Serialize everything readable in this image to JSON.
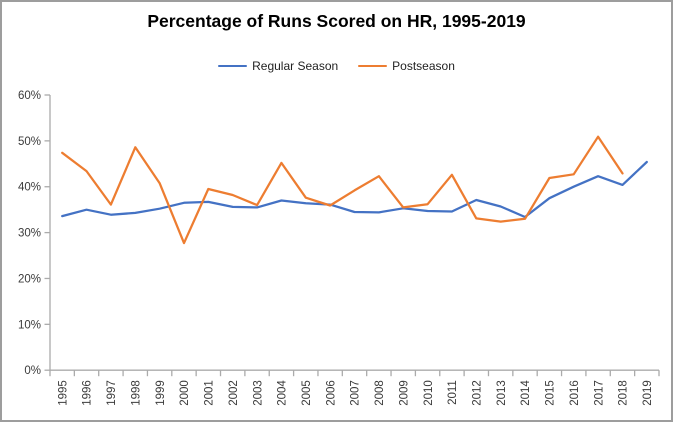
{
  "title": "Percentage of Runs Scored on HR, 1995-2019",
  "legend": {
    "items": [
      {
        "label": "Regular Season",
        "color": "#4472C4"
      },
      {
        "label": "Postseason",
        "color": "#ED7D31"
      }
    ]
  },
  "colors": {
    "regular_season": "#4472C4",
    "postseason": "#ED7D31",
    "axis_line": "#ababab",
    "tick_label": "#3b3b3b",
    "frame_border": "#9d9d9d"
  },
  "chart_data": {
    "type": "line",
    "title": "Percentage of Runs Scored on HR, 1995-2019",
    "xlabel": "",
    "ylabel": "",
    "x_labels": [
      "1995",
      "1996",
      "1997",
      "1998",
      "1999",
      "2000",
      "2001",
      "2002",
      "2003",
      "2004",
      "2005",
      "2006",
      "2007",
      "2008",
      "2009",
      "2010",
      "2011",
      "2012",
      "2013",
      "2014",
      "2015",
      "2016",
      "2017",
      "2018",
      "2019"
    ],
    "ytick_labels": [
      "0%",
      "10%",
      "20%",
      "30%",
      "40%",
      "50%",
      "60%"
    ],
    "ylim": [
      0,
      60
    ],
    "ytick_step": 10,
    "grid": false,
    "legend_position": "top",
    "series": [
      {
        "name": "Regular Season",
        "color": "#4472C4",
        "values": [
          33.6,
          35.0,
          33.9,
          34.3,
          35.2,
          36.5,
          36.7,
          35.6,
          35.5,
          37.0,
          36.4,
          36.1,
          34.5,
          34.4,
          35.3,
          34.7,
          34.6,
          37.1,
          35.7,
          33.4,
          37.5,
          40.0,
          42.3,
          40.4,
          45.4
        ]
      },
      {
        "name": "Postseason",
        "color": "#ED7D31",
        "values": [
          47.4,
          43.4,
          36.1,
          48.6,
          40.8,
          27.7,
          39.5,
          38.2,
          36.0,
          45.2,
          37.6,
          35.9,
          39.2,
          42.3,
          35.5,
          36.2,
          42.6,
          33.1,
          32.4,
          33.0,
          41.9,
          42.7,
          50.9,
          42.9,
          null
        ]
      }
    ]
  }
}
